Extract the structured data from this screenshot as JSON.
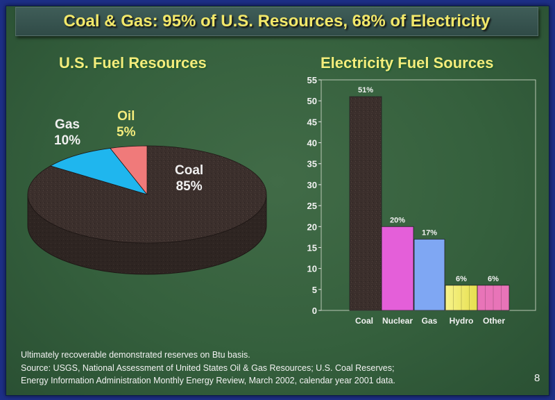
{
  "slide_title": "Coal & Gas: 95% of U.S. Resources, 68% of Electricity",
  "colors": {
    "background": "#35603d",
    "title_text": "#f2e86a",
    "coal": "#3b2f2c",
    "gas": "#1fb6ee",
    "oil": "#f07a7a",
    "nuclear": "#e45fd9",
    "gas_bar": "#7fa7f3",
    "hydro": "#f2ee66",
    "other": "#e874b8"
  },
  "chart_data": [
    {
      "type": "pie",
      "title": "U.S. Fuel Resources",
      "slices": [
        {
          "category": "Coal",
          "percent": 85,
          "label": "85%"
        },
        {
          "category": "Gas",
          "percent": 10,
          "label": "10%"
        },
        {
          "category": "Oil",
          "percent": 5,
          "label": "5%"
        }
      ]
    },
    {
      "type": "bar",
      "title": "Electricity Fuel Sources",
      "categories": [
        "Coal",
        "Nuclear",
        "Gas",
        "Hydro",
        "Other"
      ],
      "values": [
        51,
        20,
        17,
        6,
        6
      ],
      "data_labels": [
        "51%",
        "20%",
        "17%",
        "6%",
        "6%"
      ],
      "ylim": [
        0,
        55
      ],
      "yticks": [
        0,
        5,
        10,
        15,
        20,
        25,
        30,
        35,
        40,
        45,
        50,
        55
      ],
      "grid": false
    }
  ],
  "footnotes": [
    "Ultimately recoverable demonstrated reserves on Btu basis.",
    "Source:  USGS, National Assessment of United States Oil & Gas Resources; U.S. Coal Reserves;",
    "Energy Information Administration Monthly Energy Review, March 2002, calendar year 2001 data."
  ],
  "page_number": "8"
}
